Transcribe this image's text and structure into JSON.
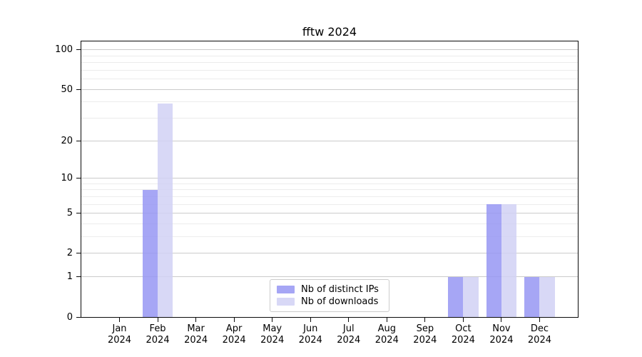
{
  "chart_data": {
    "type": "bar",
    "title": "fftw 2024",
    "categories": [
      "Jan 2024",
      "Feb 2024",
      "Mar 2024",
      "Apr 2024",
      "May 2024",
      "Jun 2024",
      "Jul 2024",
      "Aug 2024",
      "Sep 2024",
      "Oct 2024",
      "Nov 2024",
      "Dec 2024"
    ],
    "series": [
      {
        "name": "Nb of distinct IPs",
        "color": "#9696f3",
        "fill_alpha": 0.85,
        "values": [
          0,
          8,
          0,
          0,
          0,
          0,
          0,
          0,
          0,
          1,
          6,
          1
        ]
      },
      {
        "name": "Nb of downloads",
        "color": "#d1d1f5",
        "fill_alpha": 0.85,
        "values": [
          0,
          39,
          0,
          0,
          0,
          0,
          0,
          0,
          0,
          1,
          6,
          1
        ]
      }
    ],
    "xlabel": "",
    "ylabel": "",
    "yscale": "log10(1+y)",
    "ylim": [
      0,
      116
    ],
    "yticks": [
      0,
      1,
      2,
      5,
      10,
      20,
      50,
      100
    ],
    "yticks_minor": [
      3,
      4,
      6,
      7,
      8,
      9,
      30,
      40,
      60,
      70,
      80,
      90
    ],
    "grid": true,
    "legend_position": "lower center",
    "colors": {
      "grid_major": "#cbcbcb",
      "grid_minor": "#ececec",
      "axis": "#0a0a0a",
      "legend_border": "#cccccc"
    }
  }
}
